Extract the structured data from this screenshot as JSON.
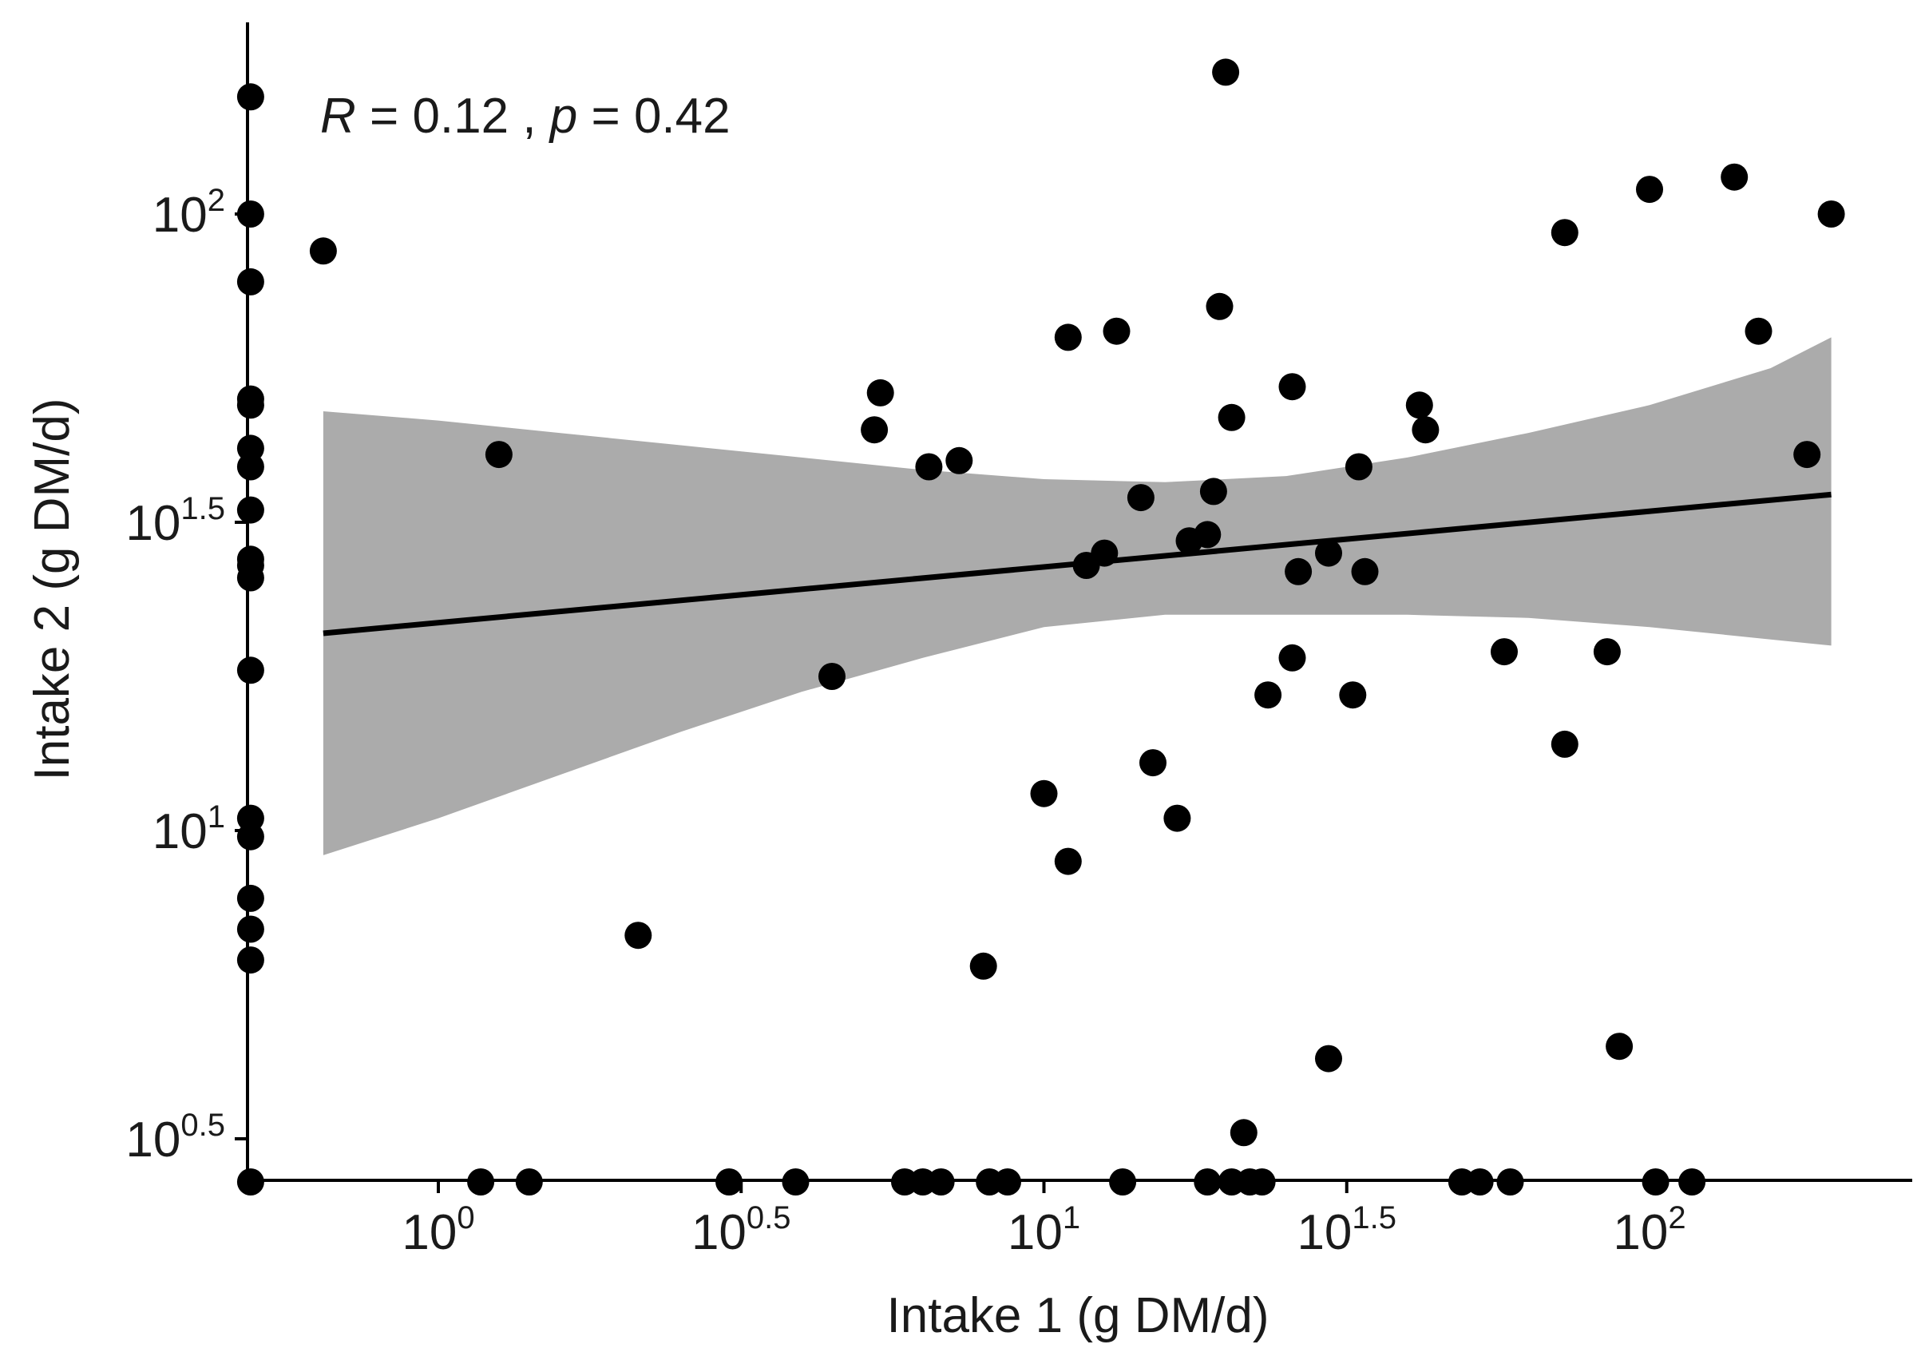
{
  "chart_data": {
    "type": "scatter",
    "title": "",
    "xlabel": "Intake 1 (g DM/d)",
    "ylabel": "Intake 2 (g DM/d)",
    "x_scale": "log10",
    "y_scale": "log10",
    "xlim_log10": [
      -0.31,
      2.41
    ],
    "ylim_log10": [
      0.43,
      2.31
    ],
    "x_ticks": [
      {
        "log": 0,
        "base": "10",
        "exp": "0"
      },
      {
        "log": 0.5,
        "base": "10",
        "exp": "0.5"
      },
      {
        "log": 1,
        "base": "10",
        "exp": "1"
      },
      {
        "log": 1.5,
        "base": "10",
        "exp": "1.5"
      },
      {
        "log": 2,
        "base": "10",
        "exp": "2"
      }
    ],
    "y_ticks": [
      {
        "log": 0.5,
        "base": "10",
        "exp": "0.5"
      },
      {
        "log": 1,
        "base": "10",
        "exp": "1"
      },
      {
        "log": 1.5,
        "base": "10",
        "exp": "1.5"
      },
      {
        "log": 2,
        "base": "10",
        "exp": "2"
      }
    ],
    "annotation": {
      "r_symbol": "R",
      "r_text": " = 0.12 , ",
      "p_symbol": "p",
      "p_text": " = 0.42"
    },
    "fit": {
      "x_range_log10": [
        -0.19,
        2.3
      ],
      "y_start_log10": 1.32,
      "y_end_log10": 1.545
    },
    "confidence_band": {
      "x_log10": [
        -0.19,
        0.0,
        0.2,
        0.4,
        0.6,
        0.8,
        1.0,
        1.2,
        1.4,
        1.6,
        1.8,
        2.0,
        2.2,
        2.3
      ],
      "upper_log10": [
        1.68,
        1.665,
        1.645,
        1.625,
        1.605,
        1.585,
        1.57,
        1.565,
        1.575,
        1.605,
        1.645,
        1.69,
        1.75,
        1.8
      ],
      "lower_log10": [
        0.96,
        1.02,
        1.09,
        1.16,
        1.225,
        1.28,
        1.33,
        1.35,
        1.35,
        1.35,
        1.345,
        1.33,
        1.31,
        1.3
      ]
    },
    "points_log10": [
      [
        -0.31,
        2.19
      ],
      [
        -0.31,
        2.0
      ],
      [
        -0.31,
        1.89
      ],
      [
        -0.31,
        1.7
      ],
      [
        -0.31,
        1.69
      ],
      [
        -0.31,
        1.62
      ],
      [
        -0.31,
        1.59
      ],
      [
        -0.31,
        1.52
      ],
      [
        -0.31,
        1.44
      ],
      [
        -0.31,
        1.43
      ],
      [
        -0.31,
        1.41
      ],
      [
        -0.31,
        1.26
      ],
      [
        -0.31,
        1.02
      ],
      [
        -0.31,
        0.99
      ],
      [
        -0.31,
        0.89
      ],
      [
        -0.31,
        0.84
      ],
      [
        -0.31,
        0.79
      ],
      [
        -0.31,
        0.43
      ],
      [
        -0.19,
        1.94
      ],
      [
        0.1,
        1.61
      ],
      [
        0.07,
        0.43
      ],
      [
        0.15,
        0.43
      ],
      [
        0.48,
        0.43
      ],
      [
        0.59,
        0.43
      ],
      [
        0.77,
        0.43
      ],
      [
        0.8,
        0.43
      ],
      [
        0.83,
        0.43
      ],
      [
        0.91,
        0.43
      ],
      [
        0.94,
        0.43
      ],
      [
        1.13,
        0.43
      ],
      [
        1.27,
        0.43
      ],
      [
        1.31,
        0.43
      ],
      [
        1.34,
        0.43
      ],
      [
        1.36,
        0.43
      ],
      [
        1.69,
        0.43
      ],
      [
        1.72,
        0.43
      ],
      [
        1.77,
        0.43
      ],
      [
        2.01,
        0.43
      ],
      [
        2.07,
        0.43
      ],
      [
        0.33,
        0.83
      ],
      [
        0.65,
        1.25
      ],
      [
        0.72,
        1.65
      ],
      [
        0.73,
        1.71
      ],
      [
        0.81,
        1.59
      ],
      [
        0.86,
        1.6
      ],
      [
        0.9,
        0.78
      ],
      [
        1.0,
        1.06
      ],
      [
        1.04,
        0.95
      ],
      [
        1.04,
        1.8
      ],
      [
        1.07,
        1.43
      ],
      [
        1.1,
        1.45
      ],
      [
        1.12,
        1.81
      ],
      [
        1.16,
        1.54
      ],
      [
        1.18,
        1.11
      ],
      [
        1.22,
        1.02
      ],
      [
        1.24,
        1.47
      ],
      [
        1.27,
        1.48
      ],
      [
        1.28,
        1.55
      ],
      [
        1.29,
        1.85
      ],
      [
        1.3,
        2.23
      ],
      [
        1.31,
        1.67
      ],
      [
        1.33,
        0.51
      ],
      [
        1.37,
        1.22
      ],
      [
        1.41,
        1.28
      ],
      [
        1.41,
        1.72
      ],
      [
        1.42,
        1.42
      ],
      [
        1.47,
        1.45
      ],
      [
        1.47,
        0.63
      ],
      [
        1.51,
        1.22
      ],
      [
        1.52,
        1.59
      ],
      [
        1.53,
        1.42
      ],
      [
        1.62,
        1.69
      ],
      [
        1.63,
        1.65
      ],
      [
        1.76,
        1.29
      ],
      [
        1.86,
        1.14
      ],
      [
        1.86,
        1.97
      ],
      [
        1.93,
        1.29
      ],
      [
        1.95,
        0.65
      ],
      [
        2.0,
        2.04
      ],
      [
        2.14,
        2.06
      ],
      [
        2.18,
        1.81
      ],
      [
        2.26,
        1.61
      ],
      [
        2.3,
        2.0
      ]
    ]
  }
}
